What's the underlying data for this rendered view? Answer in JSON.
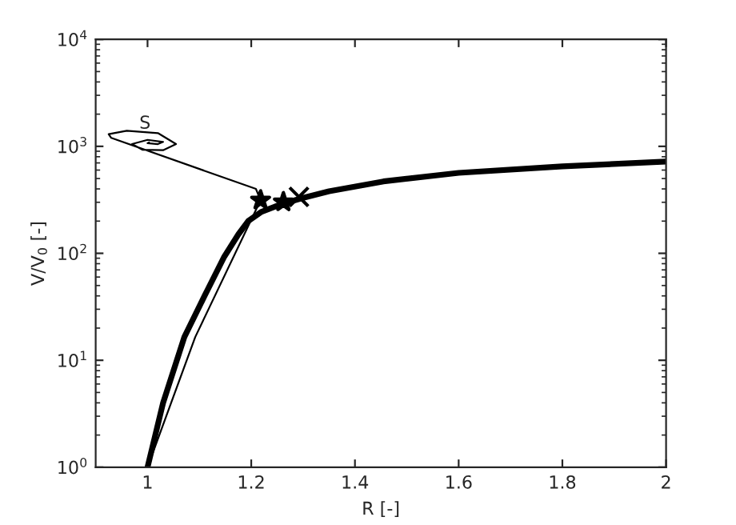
{
  "chart_data": {
    "type": "line",
    "xlabel": "R [-]",
    "ylabel": "V/V$_{0}$ [-]",
    "log": "y",
    "grid": false,
    "legend": false,
    "xlim": [
      0.9,
      2
    ],
    "xticks": [
      1,
      1.2,
      1.4,
      1.6,
      1.8,
      2
    ],
    "ylim": [
      1,
      10000
    ],
    "yticks": [
      {
        "value": 1,
        "label": "10$^{0}$"
      },
      {
        "value": 10,
        "label": "10$^{1}$"
      },
      {
        "value": 100,
        "label": "10$^{2}$"
      },
      {
        "value": 1000,
        "label": "10$^{3}$"
      },
      {
        "value": 10000,
        "label": "10$^{4}$"
      }
    ],
    "series": [
      {
        "color": "#000000",
        "marker": "none",
        "x": [
          1,
          1.03,
          1.071,
          1.11,
          1.148,
          1.175,
          1.194,
          1.22,
          1.26,
          1.3,
          1.35,
          1.455,
          1.6,
          1.8,
          2
        ],
        "values": [
          1,
          4,
          16.5,
          40,
          93,
          150,
          200,
          245,
          290,
          330,
          380,
          470,
          565,
          650,
          720
        ]
      },
      {
        "color": "#000000",
        "marker": "none",
        "x": [
          1,
          1.092,
          1.218,
          1.209,
          0.93,
          0.925,
          0.96,
          1.02,
          1.055,
          1.03,
          0.99,
          0.97,
          1.0,
          1.03,
          1.02,
          1.0,
          1.003
        ],
        "values": [
          1,
          16.5,
          314,
          400,
          1200,
          1300,
          1400,
          1330,
          1050,
          920,
          930,
          1050,
          1150,
          1100,
          1050,
          1070,
          1090
        ]
      },
      {
        "type": "scatter",
        "color": "#000000",
        "marker": "star",
        "x": [
          1.218,
          1.262
        ],
        "values": [
          314,
          302
        ]
      },
      {
        "type": "scatter",
        "color": "#000000",
        "marker": "cross",
        "x": [
          1.292
        ],
        "values": [
          337
        ]
      }
    ],
    "annotations": [
      "S"
    ]
  }
}
